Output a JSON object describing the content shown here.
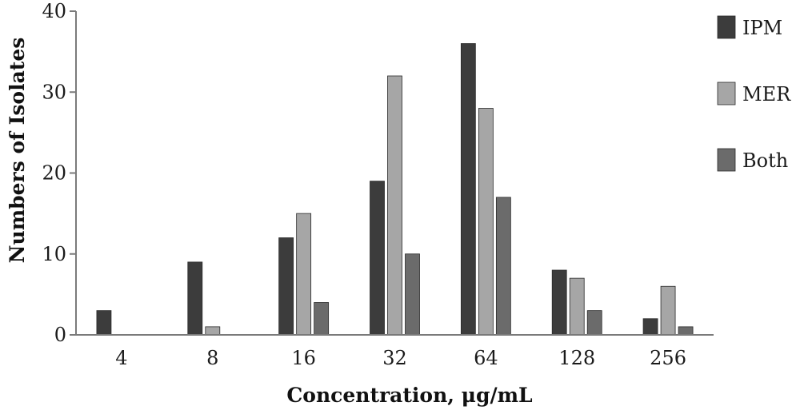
{
  "chart_data": {
    "type": "bar",
    "categories": [
      "4",
      "8",
      "16",
      "32",
      "64",
      "128",
      "256"
    ],
    "series": [
      {
        "name": "IPM",
        "color": "#3c3c3c",
        "values": [
          3,
          9,
          12,
          19,
          36,
          8,
          2
        ]
      },
      {
        "name": "MER",
        "color": "#a6a6a6",
        "values": [
          0,
          1,
          15,
          32,
          28,
          7,
          6
        ]
      },
      {
        "name": "Both",
        "color": "#6b6b6b",
        "values": [
          0,
          0,
          4,
          10,
          17,
          3,
          1
        ]
      }
    ],
    "xlabel": "Concentration, μg/mL",
    "ylabel": "Numbers of Isolates",
    "yticks": [
      "0",
      "10",
      "20",
      "30",
      "40"
    ],
    "ylim": [
      0,
      40
    ],
    "grid": false,
    "legend_position": "right"
  }
}
